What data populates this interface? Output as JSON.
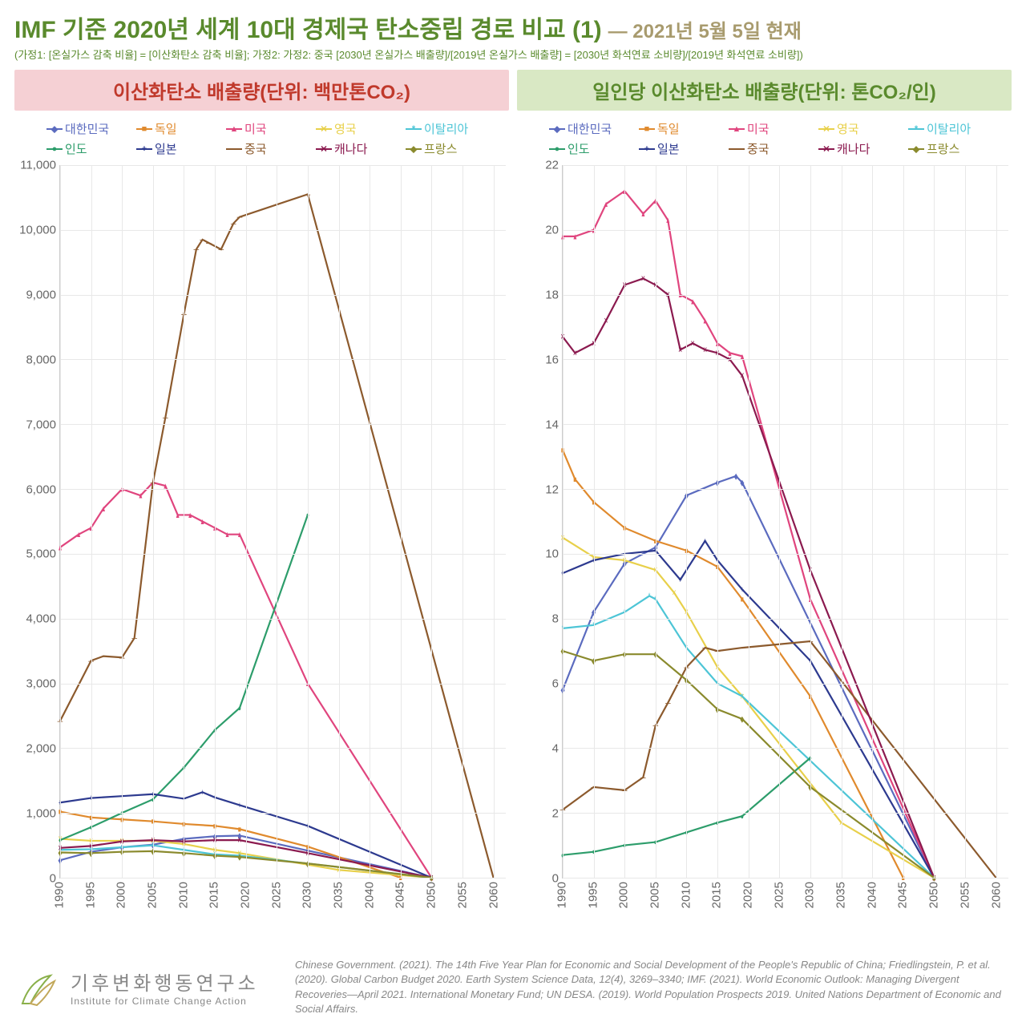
{
  "title": "IMF 기준 2020년 세계 10대 경제국 탄소중립 경로 비교 (1)",
  "title_color": "#5a8a2d",
  "date_text": "— 2021년 5월 5일 현재",
  "date_color": "#a89b6e",
  "assumptions": "(가정1: [온실가스 감축 비율] = [이산화탄소 감축 비율]; 가정2: 가정2: 중국 [2030년 온실가스 배출량]/[2019년 온실가스 배출량] = [2030년 화석연료 소비량]/[2019년 화석연료 소비량])",
  "assumptions_color": "#5a8a2d",
  "chart_left": {
    "header": "이산화탄소 배출량(단위: 백만톤CO₂)",
    "header_bg": "#f5d0d4",
    "header_color": "#c0392b",
    "ylim": [
      0,
      11000
    ],
    "yticks": [
      0,
      1000,
      2000,
      3000,
      4000,
      5000,
      6000,
      7000,
      8000,
      9000,
      10000,
      11000
    ],
    "ytick_labels": [
      "0",
      "1,000",
      "2,000",
      "3,000",
      "4,000",
      "5,000",
      "6,000",
      "7,000",
      "8,000",
      "9,000",
      "10,000",
      "11,000"
    ]
  },
  "chart_right": {
    "header": "일인당 이산화탄소 배출량(단위: 톤CO₂/인)",
    "header_bg": "#d9e8c4",
    "header_color": "#5a8a2d",
    "ylim": [
      0,
      22
    ],
    "yticks": [
      0,
      2,
      4,
      6,
      8,
      10,
      12,
      14,
      16,
      18,
      20,
      22
    ],
    "ytick_labels": [
      "0",
      "2",
      "4",
      "6",
      "8",
      "10",
      "12",
      "14",
      "16",
      "18",
      "20",
      "22"
    ]
  },
  "xlim": [
    1990,
    2062
  ],
  "xticks": [
    1990,
    1995,
    2000,
    2005,
    2010,
    2015,
    2020,
    2025,
    2030,
    2035,
    2040,
    2045,
    2050,
    2055,
    2060
  ],
  "series": [
    {
      "name": "대한민국",
      "color": "#5b6bbf",
      "marker": "diamond"
    },
    {
      "name": "독일",
      "color": "#e08a2d",
      "marker": "square"
    },
    {
      "name": "미국",
      "color": "#e0457e",
      "marker": "triangle"
    },
    {
      "name": "영국",
      "color": "#e8d04a",
      "marker": "x"
    },
    {
      "name": "이탈리아",
      "color": "#4dc5d6",
      "marker": "star"
    },
    {
      "name": "인도",
      "color": "#2d9d6b",
      "marker": "circle"
    },
    {
      "name": "일본",
      "color": "#2d3a8f",
      "marker": "plus"
    },
    {
      "name": "중국",
      "color": "#8c5a2d",
      "marker": "dash"
    },
    {
      "name": "캐나다",
      "color": "#8b1a4f",
      "marker": "x"
    },
    {
      "name": "프랑스",
      "color": "#8a8a2d",
      "marker": "diamond"
    }
  ],
  "data_left": {
    "대한민국": [
      [
        1990,
        270
      ],
      [
        1995,
        400
      ],
      [
        2000,
        470
      ],
      [
        2005,
        510
      ],
      [
        2010,
        600
      ],
      [
        2015,
        640
      ],
      [
        2019,
        650
      ],
      [
        2050,
        0
      ]
    ],
    "독일": [
      [
        1990,
        1020
      ],
      [
        1995,
        930
      ],
      [
        2000,
        900
      ],
      [
        2005,
        870
      ],
      [
        2010,
        830
      ],
      [
        2015,
        800
      ],
      [
        2019,
        750
      ],
      [
        2030,
        480
      ],
      [
        2045,
        0
      ]
    ],
    "미국": [
      [
        1990,
        5100
      ],
      [
        1993,
        5300
      ],
      [
        1995,
        5400
      ],
      [
        1997,
        5700
      ],
      [
        2000,
        6000
      ],
      [
        2003,
        5900
      ],
      [
        2005,
        6100
      ],
      [
        2007,
        6050
      ],
      [
        2009,
        5600
      ],
      [
        2011,
        5600
      ],
      [
        2013,
        5500
      ],
      [
        2015,
        5400
      ],
      [
        2017,
        5300
      ],
      [
        2019,
        5300
      ],
      [
        2030,
        3000
      ],
      [
        2050,
        0
      ]
    ],
    "영국": [
      [
        1990,
        600
      ],
      [
        1995,
        570
      ],
      [
        2000,
        570
      ],
      [
        2005,
        570
      ],
      [
        2010,
        520
      ],
      [
        2015,
        430
      ],
      [
        2019,
        380
      ],
      [
        2035,
        120
      ],
      [
        2050,
        0
      ]
    ],
    "이탈리아": [
      [
        1990,
        430
      ],
      [
        1995,
        440
      ],
      [
        2000,
        470
      ],
      [
        2005,
        500
      ],
      [
        2010,
        430
      ],
      [
        2015,
        360
      ],
      [
        2019,
        340
      ],
      [
        2050,
        0
      ]
    ],
    "인도": [
      [
        1990,
        580
      ],
      [
        1995,
        780
      ],
      [
        2000,
        1000
      ],
      [
        2005,
        1210
      ],
      [
        2010,
        1700
      ],
      [
        2015,
        2280
      ],
      [
        2019,
        2620
      ],
      [
        2030,
        5600
      ]
    ],
    "일본": [
      [
        1990,
        1160
      ],
      [
        1995,
        1230
      ],
      [
        2000,
        1260
      ],
      [
        2005,
        1290
      ],
      [
        2010,
        1220
      ],
      [
        2013,
        1320
      ],
      [
        2015,
        1240
      ],
      [
        2019,
        1120
      ],
      [
        2030,
        800
      ],
      [
        2050,
        0
      ]
    ],
    "중국": [
      [
        1990,
        2420
      ],
      [
        1995,
        3350
      ],
      [
        1997,
        3420
      ],
      [
        2000,
        3400
      ],
      [
        2002,
        3700
      ],
      [
        2005,
        6100
      ],
      [
        2007,
        7100
      ],
      [
        2010,
        8700
      ],
      [
        2012,
        9700
      ],
      [
        2013,
        9850
      ],
      [
        2014,
        9800
      ],
      [
        2016,
        9700
      ],
      [
        2018,
        10100
      ],
      [
        2019,
        10200
      ],
      [
        2030,
        10550
      ],
      [
        2060,
        0
      ]
    ],
    "캐나다": [
      [
        1990,
        460
      ],
      [
        1995,
        490
      ],
      [
        2000,
        560
      ],
      [
        2005,
        580
      ],
      [
        2010,
        560
      ],
      [
        2015,
        580
      ],
      [
        2019,
        580
      ],
      [
        2030,
        380
      ],
      [
        2050,
        0
      ]
    ],
    "프랑스": [
      [
        1990,
        390
      ],
      [
        1995,
        380
      ],
      [
        2000,
        400
      ],
      [
        2005,
        410
      ],
      [
        2010,
        380
      ],
      [
        2015,
        340
      ],
      [
        2019,
        320
      ],
      [
        2030,
        220
      ],
      [
        2050,
        0
      ]
    ]
  },
  "data_right": {
    "대한민국": [
      [
        1990,
        5.8
      ],
      [
        1995,
        8.2
      ],
      [
        2000,
        9.7
      ],
      [
        2005,
        10.2
      ],
      [
        2010,
        11.8
      ],
      [
        2015,
        12.2
      ],
      [
        2018,
        12.4
      ],
      [
        2019,
        12.2
      ],
      [
        2050,
        0
      ]
    ],
    "독일": [
      [
        1990,
        13.2
      ],
      [
        1992,
        12.3
      ],
      [
        1995,
        11.6
      ],
      [
        2000,
        10.8
      ],
      [
        2005,
        10.4
      ],
      [
        2010,
        10.1
      ],
      [
        2015,
        9.6
      ],
      [
        2019,
        8.6
      ],
      [
        2030,
        5.6
      ],
      [
        2045,
        0
      ]
    ],
    "미국": [
      [
        1990,
        19.8
      ],
      [
        1992,
        19.8
      ],
      [
        1995,
        20.0
      ],
      [
        1997,
        20.8
      ],
      [
        2000,
        21.2
      ],
      [
        2003,
        20.5
      ],
      [
        2005,
        20.9
      ],
      [
        2007,
        20.3
      ],
      [
        2009,
        18.0
      ],
      [
        2011,
        17.8
      ],
      [
        2013,
        17.2
      ],
      [
        2015,
        16.5
      ],
      [
        2017,
        16.2
      ],
      [
        2019,
        16.1
      ],
      [
        2030,
        8.6
      ],
      [
        2050,
        0
      ]
    ],
    "영국": [
      [
        1990,
        10.5
      ],
      [
        1995,
        9.9
      ],
      [
        2000,
        9.8
      ],
      [
        2005,
        9.5
      ],
      [
        2008,
        8.8
      ],
      [
        2010,
        8.2
      ],
      [
        2015,
        6.5
      ],
      [
        2019,
        5.6
      ],
      [
        2035,
        1.7
      ],
      [
        2050,
        0
      ]
    ],
    "이탈리아": [
      [
        1990,
        7.7
      ],
      [
        1995,
        7.8
      ],
      [
        2000,
        8.2
      ],
      [
        2004,
        8.7
      ],
      [
        2005,
        8.6
      ],
      [
        2010,
        7.1
      ],
      [
        2015,
        6.0
      ],
      [
        2019,
        5.6
      ],
      [
        2050,
        0
      ]
    ],
    "인도": [
      [
        1990,
        0.7
      ],
      [
        1995,
        0.8
      ],
      [
        2000,
        1.0
      ],
      [
        2005,
        1.1
      ],
      [
        2010,
        1.4
      ],
      [
        2015,
        1.7
      ],
      [
        2019,
        1.9
      ],
      [
        2030,
        3.7
      ]
    ],
    "일본": [
      [
        1990,
        9.4
      ],
      [
        1995,
        9.8
      ],
      [
        2000,
        10.0
      ],
      [
        2005,
        10.1
      ],
      [
        2009,
        9.2
      ],
      [
        2013,
        10.4
      ],
      [
        2015,
        9.8
      ],
      [
        2019,
        8.9
      ],
      [
        2030,
        6.7
      ],
      [
        2050,
        0
      ]
    ],
    "중국": [
      [
        1990,
        2.1
      ],
      [
        1995,
        2.8
      ],
      [
        2000,
        2.7
      ],
      [
        2003,
        3.1
      ],
      [
        2005,
        4.7
      ],
      [
        2007,
        5.4
      ],
      [
        2010,
        6.5
      ],
      [
        2013,
        7.1
      ],
      [
        2015,
        7.0
      ],
      [
        2019,
        7.1
      ],
      [
        2030,
        7.3
      ],
      [
        2060,
        0
      ]
    ],
    "캐나다": [
      [
        1990,
        16.7
      ],
      [
        1992,
        16.2
      ],
      [
        1995,
        16.5
      ],
      [
        1997,
        17.2
      ],
      [
        2000,
        18.3
      ],
      [
        2003,
        18.5
      ],
      [
        2005,
        18.3
      ],
      [
        2007,
        18.0
      ],
      [
        2009,
        16.3
      ],
      [
        2011,
        16.5
      ],
      [
        2013,
        16.3
      ],
      [
        2015,
        16.2
      ],
      [
        2017,
        16.0
      ],
      [
        2019,
        15.5
      ],
      [
        2030,
        9.5
      ],
      [
        2050,
        0
      ]
    ],
    "프랑스": [
      [
        1990,
        7.0
      ],
      [
        1995,
        6.7
      ],
      [
        2000,
        6.9
      ],
      [
        2005,
        6.9
      ],
      [
        2010,
        6.1
      ],
      [
        2015,
        5.2
      ],
      [
        2019,
        4.9
      ],
      [
        2030,
        2.8
      ],
      [
        2050,
        0
      ]
    ]
  },
  "logo": {
    "kr": "기후변화행동연구소",
    "en": "Institute for Climate Change Action",
    "kr_color": "#888888",
    "leaf_stroke": "#8ab04a"
  },
  "citation": "Chinese Government. (2021). The 14th Five Year Plan for Economic and Social Development of the People's Republic of China; Friedlingstein, P. et al. (2020). Global Carbon Budget 2020. Earth System Science Data, 12(4), 3269–3340; IMF. (2021). World Economic Outlook: Managing Divergent Recoveries—April 2021. International Monetary Fund; UN DESA. (2019). World Population Prospects 2019. United Nations Department of Economic and Social Affairs.",
  "citation_color": "#888888"
}
